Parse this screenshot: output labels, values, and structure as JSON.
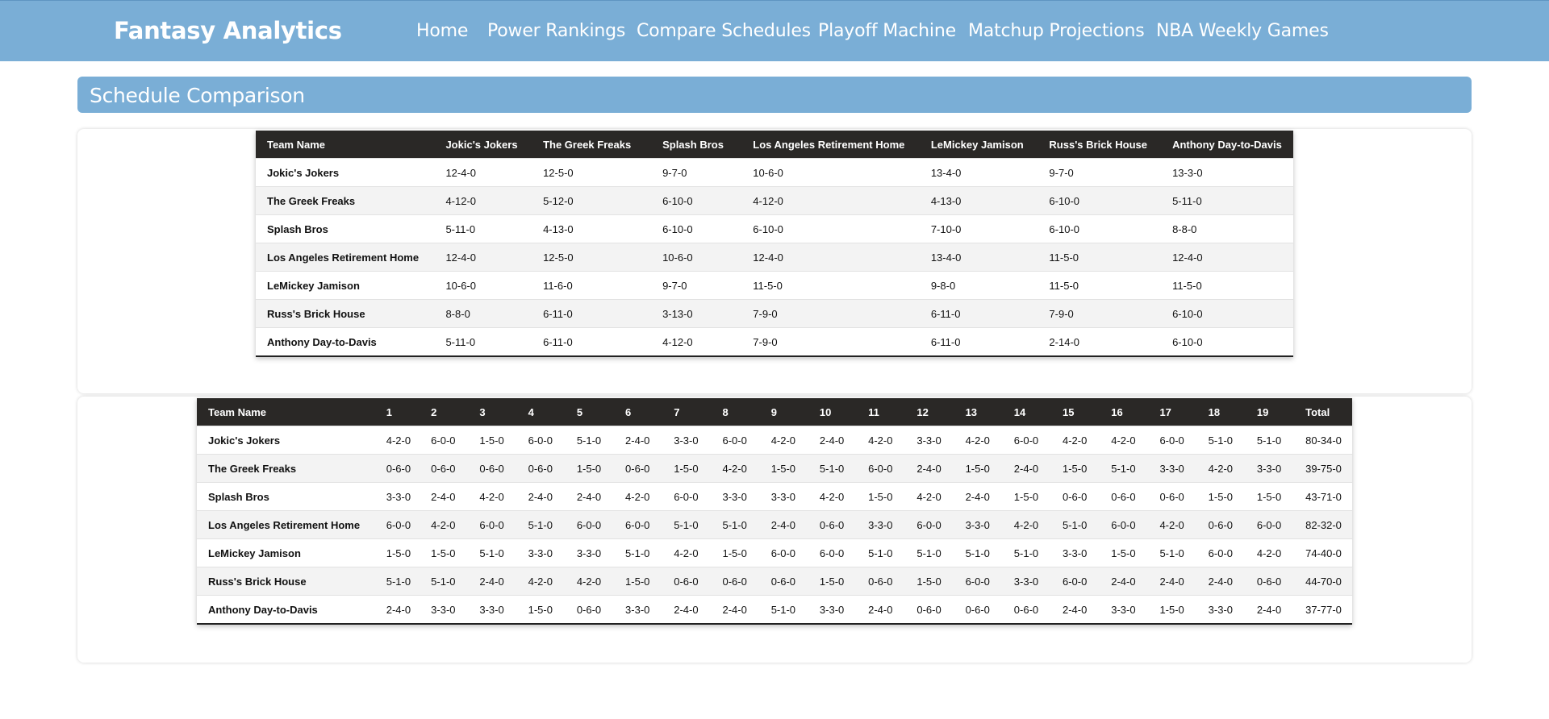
{
  "brand": "Fantasy Analytics",
  "nav": [
    "Home",
    "Power Rankings",
    "Compare Schedules",
    "Playoff Machine",
    "Matchup Projections",
    "NBA Weekly Games"
  ],
  "section_title": "Schedule Comparison",
  "comparison_table": {
    "headers": [
      "Team Name",
      "Jokic's Jokers",
      "The Greek Freaks",
      "Splash Bros",
      "Los Angeles Retirement Home",
      "LeMickey Jamison",
      "Russ's Brick House",
      "Anthony Day-to-Davis"
    ],
    "rows": [
      [
        "Jokic's Jokers",
        "12-4-0",
        "12-5-0",
        "9-7-0",
        "10-6-0",
        "13-4-0",
        "9-7-0",
        "13-3-0"
      ],
      [
        "The Greek Freaks",
        "4-12-0",
        "5-12-0",
        "6-10-0",
        "4-12-0",
        "4-13-0",
        "6-10-0",
        "5-11-0"
      ],
      [
        "Splash Bros",
        "5-11-0",
        "4-13-0",
        "6-10-0",
        "6-10-0",
        "7-10-0",
        "6-10-0",
        "8-8-0"
      ],
      [
        "Los Angeles Retirement Home",
        "12-4-0",
        "12-5-0",
        "10-6-0",
        "12-4-0",
        "13-4-0",
        "11-5-0",
        "12-4-0"
      ],
      [
        "LeMickey Jamison",
        "10-6-0",
        "11-6-0",
        "9-7-0",
        "11-5-0",
        "9-8-0",
        "11-5-0",
        "11-5-0"
      ],
      [
        "Russ's Brick House",
        "8-8-0",
        "6-11-0",
        "3-13-0",
        "7-9-0",
        "6-11-0",
        "7-9-0",
        "6-10-0"
      ],
      [
        "Anthony Day-to-Davis",
        "5-11-0",
        "6-11-0",
        "4-12-0",
        "7-9-0",
        "6-11-0",
        "2-14-0",
        "6-10-0"
      ]
    ]
  },
  "weekly_table": {
    "headers": [
      "Team Name",
      "1",
      "2",
      "3",
      "4",
      "5",
      "6",
      "7",
      "8",
      "9",
      "10",
      "11",
      "12",
      "13",
      "14",
      "15",
      "16",
      "17",
      "18",
      "19",
      "Total"
    ],
    "rows": [
      [
        "Jokic's Jokers",
        "4-2-0",
        "6-0-0",
        "1-5-0",
        "6-0-0",
        "5-1-0",
        "2-4-0",
        "3-3-0",
        "6-0-0",
        "4-2-0",
        "2-4-0",
        "4-2-0",
        "3-3-0",
        "4-2-0",
        "6-0-0",
        "4-2-0",
        "4-2-0",
        "6-0-0",
        "5-1-0",
        "5-1-0",
        "80-34-0"
      ],
      [
        "The Greek Freaks",
        "0-6-0",
        "0-6-0",
        "0-6-0",
        "0-6-0",
        "1-5-0",
        "0-6-0",
        "1-5-0",
        "4-2-0",
        "1-5-0",
        "5-1-0",
        "6-0-0",
        "2-4-0",
        "1-5-0",
        "2-4-0",
        "1-5-0",
        "5-1-0",
        "3-3-0",
        "4-2-0",
        "3-3-0",
        "39-75-0"
      ],
      [
        "Splash Bros",
        "3-3-0",
        "2-4-0",
        "4-2-0",
        "2-4-0",
        "2-4-0",
        "4-2-0",
        "6-0-0",
        "3-3-0",
        "3-3-0",
        "4-2-0",
        "1-5-0",
        "4-2-0",
        "2-4-0",
        "1-5-0",
        "0-6-0",
        "0-6-0",
        "0-6-0",
        "1-5-0",
        "1-5-0",
        "43-71-0"
      ],
      [
        "Los Angeles Retirement Home",
        "6-0-0",
        "4-2-0",
        "6-0-0",
        "5-1-0",
        "6-0-0",
        "6-0-0",
        "5-1-0",
        "5-1-0",
        "2-4-0",
        "0-6-0",
        "3-3-0",
        "6-0-0",
        "3-3-0",
        "4-2-0",
        "5-1-0",
        "6-0-0",
        "4-2-0",
        "0-6-0",
        "6-0-0",
        "82-32-0"
      ],
      [
        "LeMickey Jamison",
        "1-5-0",
        "1-5-0",
        "5-1-0",
        "3-3-0",
        "3-3-0",
        "5-1-0",
        "4-2-0",
        "1-5-0",
        "6-0-0",
        "6-0-0",
        "5-1-0",
        "5-1-0",
        "5-1-0",
        "5-1-0",
        "3-3-0",
        "1-5-0",
        "5-1-0",
        "6-0-0",
        "4-2-0",
        "74-40-0"
      ],
      [
        "Russ's Brick House",
        "5-1-0",
        "5-1-0",
        "2-4-0",
        "4-2-0",
        "4-2-0",
        "1-5-0",
        "0-6-0",
        "0-6-0",
        "0-6-0",
        "1-5-0",
        "0-6-0",
        "1-5-0",
        "6-0-0",
        "3-3-0",
        "6-0-0",
        "2-4-0",
        "2-4-0",
        "2-4-0",
        "0-6-0",
        "44-70-0"
      ],
      [
        "Anthony Day-to-Davis",
        "2-4-0",
        "3-3-0",
        "3-3-0",
        "1-5-0",
        "0-6-0",
        "3-3-0",
        "2-4-0",
        "2-4-0",
        "5-1-0",
        "3-3-0",
        "2-4-0",
        "0-6-0",
        "0-6-0",
        "0-6-0",
        "2-4-0",
        "3-3-0",
        "1-5-0",
        "3-3-0",
        "2-4-0",
        "37-77-0"
      ]
    ]
  }
}
